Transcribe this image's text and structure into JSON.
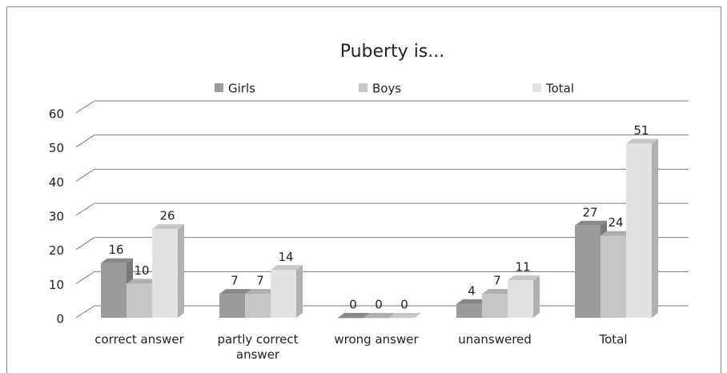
{
  "chart_data": {
    "type": "bar3d",
    "title": "Puberty is...",
    "categories": [
      "correct answer",
      "partly correct answer",
      "wrong answer",
      "unanswered",
      "Total"
    ],
    "series": [
      {
        "name": "Girls",
        "color": "#9b9b9b",
        "values": [
          16,
          7,
          0,
          4,
          27
        ]
      },
      {
        "name": "Boys",
        "color": "#c6c6c6",
        "values": [
          10,
          7,
          0,
          7,
          24
        ]
      },
      {
        "name": "Total",
        "color": "#e2e2e2",
        "values": [
          26,
          14,
          0,
          11,
          51
        ]
      }
    ],
    "ylim": [
      0,
      60
    ],
    "yticks": [
      0,
      10,
      20,
      30,
      40,
      50,
      60
    ],
    "grid": true,
    "legend": "top"
  }
}
